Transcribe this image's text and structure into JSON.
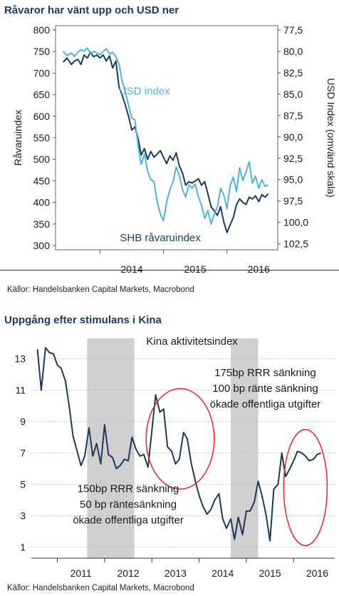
{
  "chart1": {
    "title": "Råvaror har vänt upp och USD ner",
    "source": "Källor: Handelsbanken Capital Markets, Macrobond",
    "chart_data": {
      "type": "line",
      "title": "Råvaror har vänt upp och USD ner",
      "ylabel": "Råvaruindex",
      "y2label": "USD Index (omvänd skala)",
      "ylim": [
        290,
        810
      ],
      "yticks": [
        "800",
        "750",
        "700",
        "650",
        "600",
        "550",
        "500",
        "450",
        "400",
        "350",
        "300"
      ],
      "y2lim": [
        77.0,
        103.2
      ],
      "y2_inverted": true,
      "y2ticks": [
        "77,5",
        "80,0",
        "82,5",
        "85,0",
        "87,5",
        "90,0",
        "92,5",
        "95,0",
        "97,5",
        "100,0",
        "102,5"
      ],
      "xlim": [
        2013.3,
        2016.8
      ],
      "xticks": [
        "2014",
        "2015",
        "2016"
      ],
      "grid": false,
      "colors": {
        "shb": "#1b3a5c",
        "usd": "#4fb3de"
      },
      "series": [
        {
          "name": "SHB råvaruindex",
          "axis": "left",
          "x": [
            2013.42,
            2013.48,
            2013.55,
            2013.6,
            2013.65,
            2013.7,
            2013.75,
            2013.8,
            2013.85,
            2013.9,
            2013.95,
            2014.0,
            2014.05,
            2014.1,
            2014.15,
            2014.2,
            2014.25,
            2014.3,
            2014.35,
            2014.4,
            2014.45,
            2014.5,
            2014.55,
            2014.6,
            2014.65,
            2014.7,
            2014.75,
            2014.8,
            2014.85,
            2014.9,
            2014.95,
            2015.0,
            2015.05,
            2015.1,
            2015.15,
            2015.2,
            2015.25,
            2015.3,
            2015.35,
            2015.4,
            2015.45,
            2015.5,
            2015.55,
            2015.6,
            2015.65,
            2015.7,
            2015.75,
            2015.8,
            2015.85,
            2015.9,
            2015.95,
            2016.0,
            2016.05,
            2016.1,
            2016.15,
            2016.2,
            2016.25,
            2016.3,
            2016.35,
            2016.4,
            2016.45,
            2016.5,
            2016.55,
            2016.6,
            2016.65
          ],
          "y": [
            725,
            735,
            720,
            728,
            732,
            720,
            742,
            735,
            748,
            738,
            742,
            735,
            742,
            728,
            740,
            712,
            728,
            668,
            648,
            625,
            600,
            568,
            575,
            548,
            510,
            525,
            500,
            518,
            505,
            512,
            520,
            505,
            490,
            508,
            498,
            515,
            485,
            468,
            440,
            448,
            445,
            450,
            455,
            440,
            448,
            420,
            390,
            380,
            370,
            390,
            355,
            330,
            348,
            365,
            395,
            408,
            400,
            395,
            412,
            408,
            415,
            402,
            418,
            412,
            420
          ]
        },
        {
          "name": "USD index",
          "axis": "right",
          "x": [
            2013.42,
            2013.48,
            2013.55,
            2013.6,
            2013.65,
            2013.7,
            2013.75,
            2013.8,
            2013.85,
            2013.9,
            2013.95,
            2014.0,
            2014.05,
            2014.1,
            2014.15,
            2014.2,
            2014.25,
            2014.3,
            2014.35,
            2014.4,
            2014.45,
            2014.5,
            2014.55,
            2014.6,
            2014.65,
            2014.7,
            2014.75,
            2014.8,
            2014.85,
            2014.9,
            2014.95,
            2015.0,
            2015.05,
            2015.1,
            2015.15,
            2015.2,
            2015.25,
            2015.3,
            2015.35,
            2015.4,
            2015.45,
            2015.5,
            2015.55,
            2015.6,
            2015.65,
            2015.7,
            2015.75,
            2015.8,
            2015.85,
            2015.9,
            2015.95,
            2016.0,
            2016.05,
            2016.1,
            2016.15,
            2016.2,
            2016.25,
            2016.3,
            2016.35,
            2016.4,
            2016.45,
            2016.5,
            2016.55,
            2016.6,
            2016.65
          ],
          "y": [
            80.0,
            80.5,
            80.2,
            80.6,
            80.1,
            79.8,
            80.0,
            79.6,
            80.3,
            80.0,
            80.2,
            80.4,
            80.0,
            79.7,
            80.3,
            80.1,
            80.6,
            81.5,
            83.5,
            84.8,
            86.3,
            87.8,
            88.0,
            91.0,
            93.2,
            92.0,
            94.0,
            95.0,
            95.2,
            97.5,
            99.0,
            99.8,
            97.6,
            96.2,
            95.3,
            93.5,
            94.5,
            96.2,
            97.0,
            95.6,
            96.0,
            95.5,
            97.0,
            98.0,
            99.5,
            98.6,
            100.2,
            99.0,
            98.2,
            96.0,
            96.8,
            98.4,
            95.7,
            94.7,
            96.4,
            93.6,
            95.1,
            94.1,
            92.9,
            95.4,
            94.6,
            96.0,
            95.0,
            95.8,
            95.6
          ]
        }
      ],
      "annotations": [
        {
          "text": "USD index",
          "x": 2014.7,
          "y": 650
        },
        {
          "text": "SHB råvaruindex",
          "x": 2014.95,
          "y": 310
        }
      ]
    }
  },
  "chart2": {
    "title": "Uppgång efter stimulans i Kina",
    "source": "Källor: Handelsbanken Capital Markets, Macrobond",
    "chart_data": {
      "type": "line",
      "title": "Uppgång efter stimulans i Kina",
      "ylim": [
        0.3,
        14.3
      ],
      "yticks": [
        13,
        11,
        9,
        7,
        5,
        3,
        1
      ],
      "xlim": [
        2010.45,
        2016.87
      ],
      "xticks": [
        "2011",
        "2012",
        "2013",
        "2014",
        "2015",
        "2016"
      ],
      "grid": true,
      "colors": {
        "line": "#1b3a5c",
        "shade": "#d0d0d0",
        "circle": "#e8252a"
      },
      "shaded_periods": [
        [
          2011.63,
          2012.63
        ],
        [
          2014.67,
          2015.25
        ]
      ],
      "series": [
        {
          "name": "Kina aktivitetsindex",
          "x": [
            2010.58,
            2010.66,
            2010.75,
            2010.83,
            2010.92,
            2011.0,
            2011.08,
            2011.17,
            2011.25,
            2011.33,
            2011.42,
            2011.5,
            2011.58,
            2011.67,
            2011.75,
            2011.83,
            2011.92,
            2012.0,
            2012.08,
            2012.17,
            2012.25,
            2012.33,
            2012.42,
            2012.5,
            2012.58,
            2012.67,
            2012.75,
            2012.83,
            2012.92,
            2013.0,
            2013.08,
            2013.17,
            2013.25,
            2013.33,
            2013.42,
            2013.5,
            2013.58,
            2013.67,
            2013.75,
            2013.83,
            2013.92,
            2014.0,
            2014.08,
            2014.17,
            2014.25,
            2014.33,
            2014.42,
            2014.5,
            2014.58,
            2014.67,
            2014.75,
            2014.83,
            2014.92,
            2015.0,
            2015.08,
            2015.17,
            2015.25,
            2015.33,
            2015.42,
            2015.5,
            2015.58,
            2015.67,
            2015.75,
            2015.83,
            2015.92,
            2016.0,
            2016.08,
            2016.17,
            2016.25,
            2016.33,
            2016.42,
            2016.5,
            2016.58
          ],
          "y": [
            13.6,
            11.0,
            13.7,
            13.4,
            13.3,
            12.6,
            12.4,
            11.6,
            10.0,
            8.1,
            7.1,
            6.2,
            6.8,
            8.6,
            6.8,
            7.6,
            6.3,
            8.8,
            6.9,
            6.7,
            6.0,
            6.2,
            6.6,
            6.5,
            8.0,
            7.2,
            6.8,
            6.9,
            6.1,
            8.4,
            10.7,
            9.6,
            9.8,
            7.4,
            7.1,
            6.3,
            6.6,
            8.3,
            7.9,
            6.4,
            5.2,
            4.3,
            3.6,
            3.1,
            3.4,
            4.0,
            4.4,
            2.8,
            2.2,
            2.8,
            1.5,
            2.9,
            1.8,
            3.3,
            3.3,
            3.9,
            5.2,
            4.3,
            3.0,
            1.4,
            4.7,
            5.0,
            7.0,
            5.5,
            6.0,
            6.5,
            7.1,
            7.0,
            6.8,
            6.5,
            6.6,
            6.9,
            7.0
          ]
        }
      ],
      "annotations": [
        {
          "text": "Kina aktivitetsindex",
          "x": 2013.85,
          "y": 13.9
        },
        {
          "text": "175bp RRR sänkning",
          "x": 2015.4,
          "y": 11.9
        },
        {
          "text": "100 bp ränte sänkning",
          "x": 2015.4,
          "y": 10.9
        },
        {
          "text": "ökade offentliga utgifter",
          "x": 2015.4,
          "y": 9.9
        },
        {
          "text": "150bp RRR sänkning",
          "x": 2012.5,
          "y": 4.5
        },
        {
          "text": "50 bp räntesänkning",
          "x": 2012.5,
          "y": 3.5
        },
        {
          "text": "ökade offentliga utgifter",
          "x": 2012.5,
          "y": 2.5
        }
      ],
      "circles": [
        {
          "cx": 2013.6,
          "cy": 7.9,
          "rx": 0.72,
          "ry": 3.2
        },
        {
          "cx": 2016.25,
          "cy": 4.8,
          "rx": 0.46,
          "ry": 3.7
        }
      ]
    }
  }
}
